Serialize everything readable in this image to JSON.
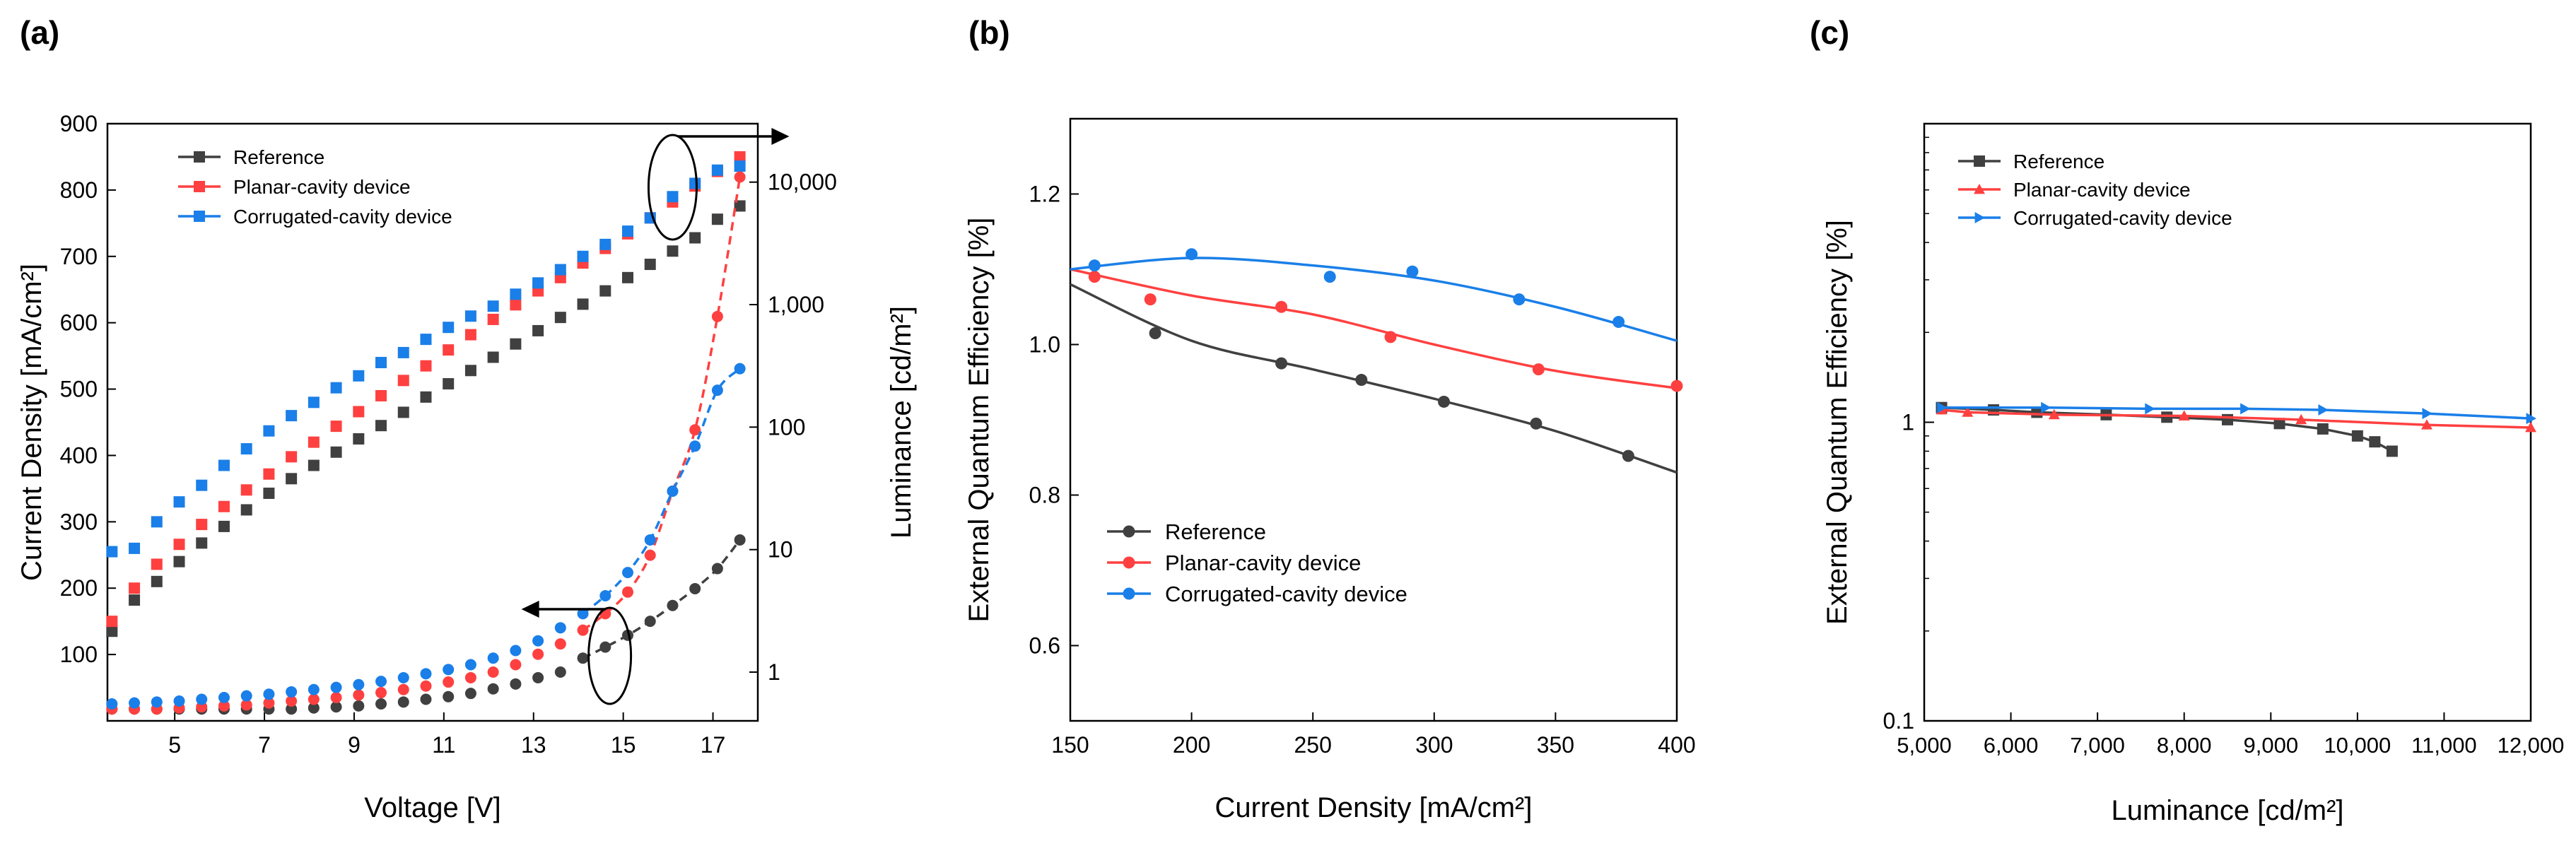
{
  "panel_labels": [
    "(a)",
    "(b)",
    "(c)"
  ],
  "colors": {
    "reference": "#404040",
    "planar": "#ff4040",
    "corrugated": "#1a7fe8"
  },
  "chart_data": [
    {
      "panel": "(a)",
      "type": "scatter",
      "xlabel": "Voltage [V]",
      "ylabel_left": "Current Density [mA/cm²]",
      "ylabel_right": "Luminance [cd/m²]",
      "xlim": [
        3.5,
        18
      ],
      "ylim_left": [
        0,
        900
      ],
      "ylim_right": [
        0.4,
        30000
      ],
      "y_right_scale": "log",
      "xticks": [
        "5",
        "7",
        "9",
        "11",
        "13",
        "15",
        "17"
      ],
      "yticks_left": [
        "100",
        "200",
        "300",
        "400",
        "500",
        "600",
        "700",
        "800",
        "900"
      ],
      "yticks_right": [
        "1",
        "10",
        "100",
        "1,000",
        "10,000"
      ],
      "legend_position": "top-left",
      "series": [
        {
          "name": "Reference",
          "marker": "square",
          "axis": "left",
          "x": [
            3.6,
            4.1,
            4.6,
            5.1,
            5.6,
            6.1,
            6.6,
            7.1,
            7.6,
            8.1,
            8.6,
            9.1,
            9.6,
            10.1,
            10.6,
            11.1,
            11.6,
            12.1,
            12.6,
            13.1,
            13.6,
            14.1,
            14.6,
            15.1,
            15.6,
            16.1,
            16.6,
            17.1,
            17.6
          ],
          "y": [
            135,
            182,
            210,
            240,
            268,
            293,
            318,
            343,
            365,
            385,
            405,
            425,
            445,
            465,
            488,
            508,
            528,
            548,
            568,
            588,
            608,
            628,
            648,
            668,
            688,
            708,
            728,
            756,
            776
          ]
        },
        {
          "name": "Planar-cavity device",
          "marker": "square",
          "axis": "left",
          "x": [
            3.6,
            4.1,
            4.6,
            5.1,
            5.6,
            6.1,
            6.6,
            7.1,
            7.6,
            8.1,
            8.6,
            9.1,
            9.6,
            10.1,
            10.6,
            11.1,
            11.6,
            12.1,
            12.6,
            13.1,
            13.6,
            14.1,
            14.6,
            15.1,
            15.6,
            16.1,
            16.6,
            17.1,
            17.6
          ],
          "y": [
            150,
            200,
            236,
            266,
            296,
            323,
            348,
            372,
            398,
            420,
            444,
            466,
            490,
            513,
            535,
            559,
            582,
            605,
            627,
            648,
            668,
            690,
            712,
            734,
            758,
            782,
            806,
            828,
            850
          ]
        },
        {
          "name": "Corrugated-cavity device",
          "marker": "square",
          "axis": "left",
          "x": [
            3.6,
            4.1,
            4.6,
            5.1,
            5.6,
            6.1,
            6.6,
            7.1,
            7.6,
            8.1,
            8.6,
            9.1,
            9.6,
            10.1,
            10.6,
            11.1,
            11.6,
            12.1,
            12.6,
            13.1,
            13.6,
            14.1,
            14.6,
            15.1,
            15.6,
            16.1,
            16.6,
            17.1,
            17.6
          ],
          "y": [
            255,
            260,
            300,
            330,
            355,
            385,
            410,
            437,
            460,
            480,
            502,
            520,
            540,
            555,
            575,
            593,
            610,
            625,
            643,
            660,
            680,
            700,
            718,
            738,
            758,
            790,
            810,
            830,
            836
          ]
        },
        {
          "name": "Reference",
          "marker": "circle",
          "line": "dashed",
          "axis": "right",
          "x": [
            3.6,
            4.1,
            4.6,
            5.1,
            5.6,
            6.1,
            6.6,
            7.1,
            7.6,
            8.1,
            8.6,
            9.1,
            9.6,
            10.1,
            10.6,
            11.1,
            11.6,
            12.1,
            12.6,
            13.1,
            13.6,
            14.1,
            14.6,
            15.1,
            15.6,
            16.1,
            16.6,
            17.1,
            17.6
          ],
          "y": [
            0.5,
            0.5,
            0.5,
            0.5,
            0.5,
            0.5,
            0.5,
            0.5,
            0.5,
            0.51,
            0.52,
            0.53,
            0.55,
            0.57,
            0.6,
            0.63,
            0.67,
            0.73,
            0.8,
            0.9,
            1.0,
            1.3,
            1.6,
            2.0,
            2.6,
            3.5,
            4.8,
            7,
            12
          ]
        },
        {
          "name": "Planar-cavity device",
          "marker": "circle",
          "line": "dashed",
          "axis": "right",
          "x": [
            3.6,
            4.1,
            4.6,
            5.1,
            5.6,
            6.1,
            6.6,
            7.1,
            7.6,
            8.1,
            8.6,
            9.1,
            9.6,
            10.1,
            10.6,
            11.1,
            11.6,
            12.1,
            12.6,
            13.1,
            13.6,
            14.1,
            14.6,
            15.1,
            15.6,
            16.1,
            16.6,
            17.1,
            17.6
          ],
          "y": [
            0.5,
            0.5,
            0.5,
            0.51,
            0.52,
            0.53,
            0.54,
            0.56,
            0.58,
            0.6,
            0.62,
            0.65,
            0.68,
            0.72,
            0.77,
            0.83,
            0.9,
            1.0,
            1.15,
            1.4,
            1.7,
            2.2,
            3,
            4.5,
            9,
            30,
            95,
            800,
            11000
          ]
        },
        {
          "name": "Corrugated-cavity device",
          "marker": "circle",
          "line": "dashed",
          "axis": "right",
          "x": [
            3.6,
            4.1,
            4.6,
            5.1,
            5.6,
            6.1,
            6.6,
            7.1,
            7.6,
            8.1,
            8.6,
            9.1,
            9.6,
            10.1,
            10.6,
            11.1,
            11.6,
            12.1,
            12.6,
            13.1,
            13.6,
            14.1,
            14.6,
            15.1,
            15.6,
            16.1,
            16.6,
            17.1,
            17.6
          ],
          "y": [
            0.55,
            0.56,
            0.57,
            0.58,
            0.6,
            0.62,
            0.64,
            0.66,
            0.69,
            0.72,
            0.75,
            0.79,
            0.84,
            0.9,
            0.97,
            1.05,
            1.15,
            1.3,
            1.5,
            1.8,
            2.3,
            3.0,
            4.2,
            6.5,
            12,
            30,
            70,
            200,
            300
          ]
        }
      ],
      "annotations": [
        {
          "type": "ellipse_arrow",
          "target": "luminance_axis",
          "near_x": 16.1
        },
        {
          "type": "ellipse_arrow",
          "target": "current_density_axis",
          "near_x": 14.7
        }
      ]
    },
    {
      "panel": "(b)",
      "type": "scatter",
      "xlabel": "Current Density [mA/cm²]",
      "ylabel": "External Quantum Efficiency [%]",
      "xlim": [
        150,
        400
      ],
      "ylim": [
        0.5,
        1.3
      ],
      "xticks": [
        "150",
        "200",
        "250",
        "300",
        "350",
        "400"
      ],
      "yticks": [
        "0.6",
        "0.8",
        "1.0",
        "1.2"
      ],
      "legend_position": "bottom-left",
      "series": [
        {
          "name": "Reference",
          "x": [
            185,
            237,
            270,
            304,
            342,
            380
          ],
          "y": [
            1.015,
            0.975,
            0.953,
            0.924,
            0.895,
            0.852
          ],
          "fit_x": [
            150,
            200,
            250,
            300,
            350,
            400
          ],
          "fit_y": [
            1.08,
            1.005,
            0.967,
            0.928,
            0.885,
            0.83
          ]
        },
        {
          "name": "Planar-cavity device",
          "x": [
            160,
            183,
            237,
            282,
            343,
            400
          ],
          "y": [
            1.09,
            1.06,
            1.05,
            1.01,
            0.967,
            0.945
          ],
          "fit_x": [
            150,
            200,
            250,
            300,
            350,
            400
          ],
          "fit_y": [
            1.1,
            1.065,
            1.04,
            1.0,
            0.965,
            0.942
          ]
        },
        {
          "name": "Corrugated-cavity device",
          "x": [
            160,
            200,
            257,
            291,
            335,
            376
          ],
          "y": [
            1.105,
            1.12,
            1.09,
            1.097,
            1.06,
            1.03
          ],
          "fit_x": [
            150,
            200,
            250,
            300,
            350,
            400
          ],
          "fit_y": [
            1.1,
            1.115,
            1.105,
            1.085,
            1.05,
            1.005
          ]
        }
      ]
    },
    {
      "panel": "(c)",
      "type": "line",
      "xlabel": "Luminance [cd/m²]",
      "ylabel": "External Quantum Efficiency [%]",
      "xlim": [
        5000,
        12000
      ],
      "ylim": [
        0.1,
        10
      ],
      "y_scale": "log",
      "xticks": [
        "5,000",
        "6,000",
        "7,000",
        "8,000",
        "9,000",
        "10,000",
        "11,000",
        "12,000"
      ],
      "yticks": [
        "0.1",
        "1"
      ],
      "legend_position": "top-left",
      "series": [
        {
          "name": "Reference",
          "marker": "square",
          "x": [
            5200,
            5800,
            6300,
            7100,
            7800,
            8500,
            9100,
            9600,
            10000,
            10200,
            10400
          ],
          "y": [
            1.12,
            1.1,
            1.08,
            1.06,
            1.04,
            1.02,
            0.99,
            0.95,
            0.9,
            0.86,
            0.8
          ]
        },
        {
          "name": "Planar-cavity device",
          "marker": "triangle",
          "x": [
            5200,
            5500,
            6500,
            8000,
            9350,
            10800,
            12000
          ],
          "y": [
            1.1,
            1.08,
            1.06,
            1.05,
            1.02,
            0.98,
            0.96
          ]
        },
        {
          "name": "Corrugated-cavity device",
          "marker": "triangle-right",
          "x": [
            5200,
            6400,
            7600,
            8700,
            9600,
            10800,
            12000
          ],
          "y": [
            1.12,
            1.12,
            1.11,
            1.11,
            1.1,
            1.07,
            1.03
          ]
        }
      ]
    }
  ]
}
